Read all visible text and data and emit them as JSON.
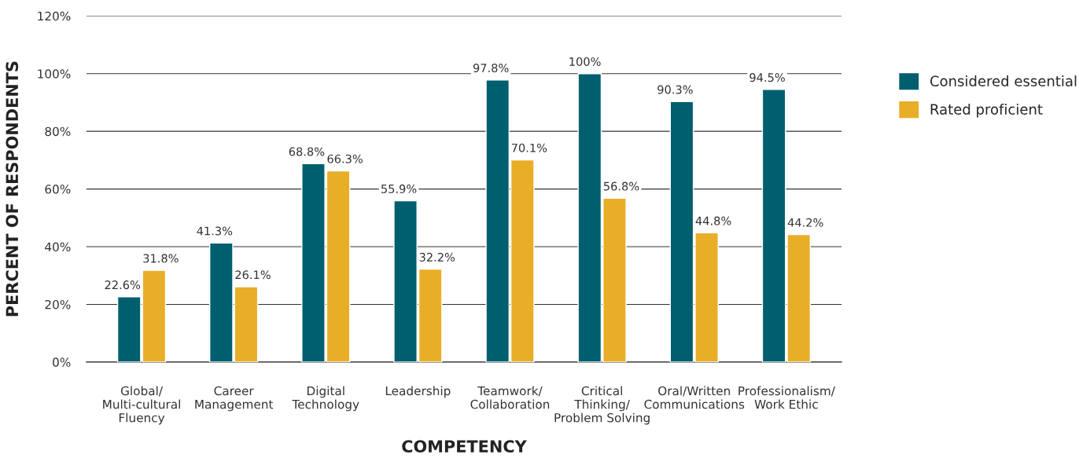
{
  "chart_data": {
    "type": "bar",
    "xlabel": "COMPETENCY",
    "ylabel": "PERCENT OF RESPONDENTS",
    "categories": [
      "Global/\nMulti-cultural\nFluency",
      "Career\nManagement",
      "Digital\nTechnology",
      "Leadership",
      "Teamwork/\nCollaboration",
      "Critical\nThinking/\nProblem Solving",
      "Oral/Written\nCommunications",
      "Professionalism/\nWork Ethic"
    ],
    "series": [
      {
        "name": "Considered essential",
        "color": "#005f6e",
        "values": [
          22.6,
          41.3,
          68.8,
          55.9,
          97.8,
          100,
          90.3,
          94.5
        ],
        "value_labels": [
          "22.6%",
          "41.3%",
          "68.8%",
          "55.9%",
          "97.8%",
          "100%",
          "90.3%",
          "94.5%"
        ]
      },
      {
        "name": "Rated proficient",
        "color": "#e8ae27",
        "values": [
          31.8,
          26.1,
          66.3,
          32.2,
          70.1,
          56.8,
          44.8,
          44.2
        ],
        "value_labels": [
          "31.8%",
          "26.1%",
          "66.3%",
          "32.2%",
          "70.1%",
          "56.8%",
          "44.8%",
          "44.2%"
        ]
      }
    ],
    "ylim": [
      0,
      120
    ],
    "yticks": [
      {
        "value": 0,
        "label": "0%"
      },
      {
        "value": 20,
        "label": "20%"
      },
      {
        "value": 40,
        "label": "40%"
      },
      {
        "value": 60,
        "label": "60%"
      },
      {
        "value": 80,
        "label": "80%"
      },
      {
        "value": 100,
        "label": "100%"
      },
      {
        "value": 120,
        "label": "120%"
      }
    ],
    "grid": "y",
    "legend": "top right"
  }
}
